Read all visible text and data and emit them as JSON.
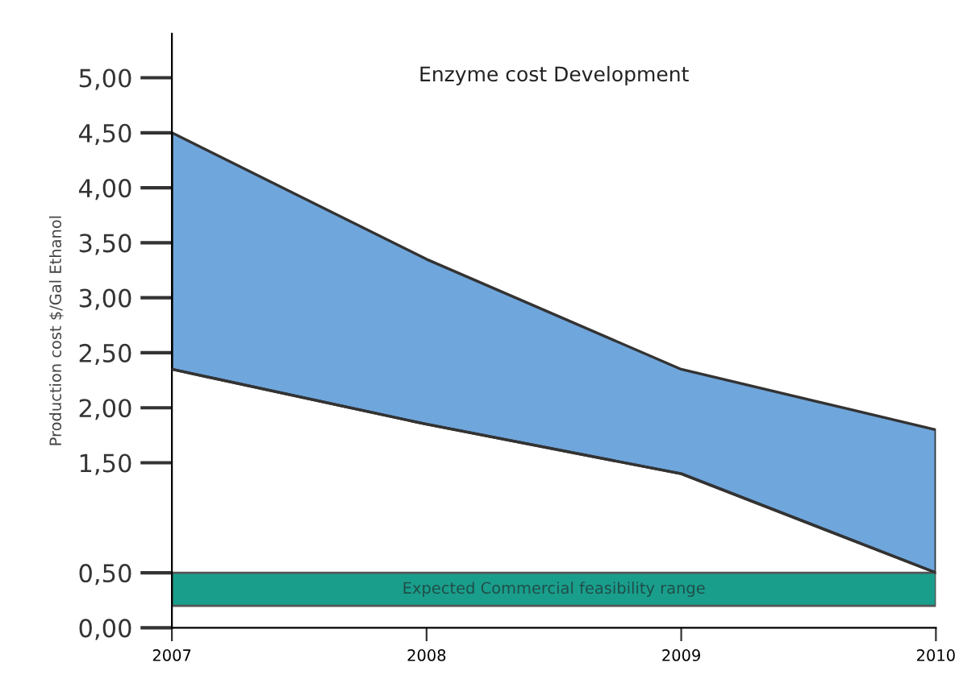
{
  "chart_data": {
    "type": "area",
    "title": "Enzyme cost Development",
    "ylabel": "Production cost $/Gal Ethanol",
    "x": [
      2007,
      2008,
      2009,
      2010
    ],
    "series": [
      {
        "type": "line",
        "color": "#333333",
        "values": [
          2.35,
          1.85,
          1.4,
          0.5
        ]
      },
      {
        "color": "#6fa6dc",
        "values": [
          4.5,
          3.35,
          2.35,
          1.8
        ]
      }
    ],
    "bands": [
      {
        "axis": "y",
        "from": 0.2,
        "to": 0.5,
        "label": "Expected Commercial feasibility range",
        "color": "#1a9e8c"
      }
    ],
    "xlim": [
      2007,
      2010
    ],
    "ylim": [
      0,
      5.4
    ],
    "xticks": [
      2007,
      2008,
      2009,
      2010
    ],
    "yticks": [
      {
        "value": 0,
        "label": "0,00"
      },
      {
        "value": 0.5,
        "label": "0,50"
      },
      {
        "value": 1.5,
        "label": "1,50"
      },
      {
        "value": 2,
        "label": "2,00"
      },
      {
        "value": 2.5,
        "label": "2,50"
      },
      {
        "value": 3,
        "label": "3,00"
      },
      {
        "value": 3.5,
        "label": "3,50"
      },
      {
        "value": 4,
        "label": "4,00"
      },
      {
        "value": 4.5,
        "label": "4,50"
      },
      {
        "value": 5,
        "label": "5,00"
      }
    ],
    "grid": false,
    "legend": false
  }
}
